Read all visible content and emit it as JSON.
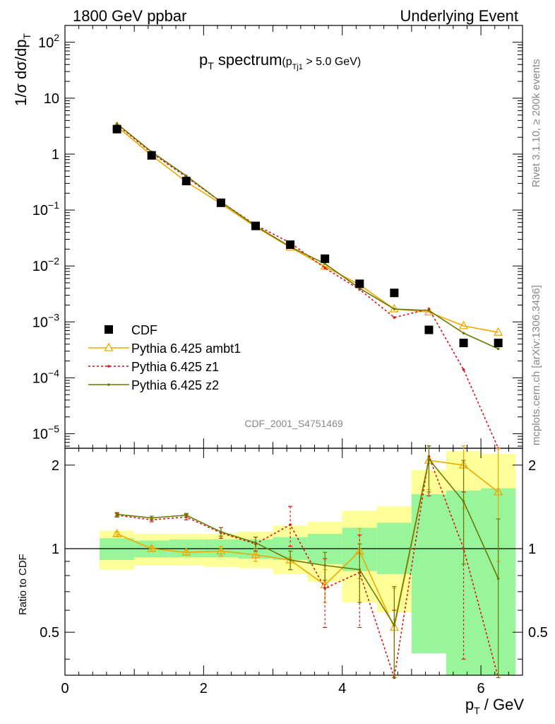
{
  "header": {
    "left": "1800 GeV ppbar",
    "right": "Underlying Event"
  },
  "title": {
    "main": "p",
    "main_sub": "T",
    "main_rest": " spectrum",
    "cut_open": "(p",
    "cut_sub": "Tj1",
    "cut_rest": " > 5.0 GeV)"
  },
  "ylabel_top": {
    "text": "1/σ dσ/dp",
    "sub": "T"
  },
  "ylabel_ratio": "Ratio to CDF",
  "xlabel": {
    "text": "p",
    "sub": "T",
    "rest": " / GeV"
  },
  "watermark": "CDF_2001_S4751469",
  "side_texts": {
    "rivet": "Rivet 3.1.10, ≥ 200k events",
    "site": "mcplots.cern.ch [arXiv:1306.3436]"
  },
  "colors": {
    "data": "#000000",
    "ambt1": "#f0a800",
    "z1": "#dd1111",
    "z2": "#6b7a00",
    "band_inner": "#99f599",
    "band_outer": "#ffff99"
  },
  "chart_data": {
    "type": "line",
    "x_range": [
      0,
      6.6
    ],
    "y_range_top": [
      5.5e-06,
      200
    ],
    "y_scale_top": "log",
    "y_range_ratio": [
      0.35,
      2.3
    ],
    "y_scale_ratio": "log",
    "x_ticks": [
      "0",
      "2",
      "4",
      "6"
    ],
    "y_ticks_top": [
      {
        "v": 100,
        "base": "10",
        "exp": "2"
      },
      {
        "v": 10,
        "base": "10",
        "exp": ""
      },
      {
        "v": 1,
        "base": "1",
        "exp": ""
      },
      {
        "v": 0.1,
        "base": "10",
        "exp": "−1"
      },
      {
        "v": 0.01,
        "base": "10",
        "exp": "−2"
      },
      {
        "v": 0.001,
        "base": "10",
        "exp": "−3"
      },
      {
        "v": 0.0001,
        "base": "10",
        "exp": "−4"
      },
      {
        "v": 1e-05,
        "base": "10",
        "exp": "−5"
      }
    ],
    "y_ticks_ratio": [
      {
        "v": 0.5,
        "label": "0.5"
      },
      {
        "v": 1,
        "label": "1"
      },
      {
        "v": 2,
        "label": "2"
      }
    ],
    "data": {
      "name": "CDF",
      "x": [
        0.75,
        1.25,
        1.75,
        2.25,
        2.75,
        3.25,
        3.75,
        4.25,
        4.75,
        5.25,
        5.75,
        6.25
      ],
      "y": [
        2.8,
        0.95,
        0.33,
        0.135,
        0.052,
        0.024,
        0.0135,
        0.0048,
        0.0033,
        0.00072,
        0.00042,
        0.00042
      ]
    },
    "bands": {
      "x_edges": [
        0.5,
        1.0,
        1.5,
        2.0,
        2.5,
        3.0,
        3.5,
        4.0,
        4.5,
        5.0,
        5.5,
        6.0,
        6.5
      ],
      "inner_lo": [
        0.91,
        0.93,
        0.93,
        0.93,
        0.92,
        0.91,
        0.88,
        0.83,
        0.81,
        0.42,
        0.33,
        0.35
      ],
      "inner_hi": [
        1.09,
        1.07,
        1.08,
        1.08,
        1.08,
        1.1,
        1.13,
        1.19,
        1.24,
        1.57,
        1.62,
        1.65
      ],
      "outer_lo": [
        0.84,
        0.87,
        0.87,
        0.86,
        0.85,
        0.81,
        0.76,
        0.64,
        0.59,
        0.55,
        0.36,
        0.37
      ],
      "outer_hi": [
        1.16,
        1.13,
        1.13,
        1.13,
        1.15,
        1.21,
        1.25,
        1.37,
        1.42,
        1.92,
        2.25,
        2.2
      ]
    },
    "series": [
      {
        "name": "Pythia 6.425 ambt1",
        "y": [
          3.15,
          0.95,
          0.32,
          0.13,
          0.05,
          0.0215,
          0.0098,
          0.0046,
          0.0017,
          0.0015,
          0.00085,
          0.00065
        ],
        "ratio": [
          1.13,
          1.0,
          0.97,
          0.98,
          0.95,
          0.91,
          0.74,
          0.98,
          0.52,
          2.08,
          2.0,
          1.6
        ],
        "ratio_err": [
          0.02,
          0.02,
          0.02,
          0.04,
          0.05,
          0.07,
          0.1,
          0.2,
          0.2,
          0.45,
          0.6,
          0.7
        ]
      },
      {
        "name": "Pythia 6.425 z1",
        "y": [
          3.4,
          1.05,
          0.39,
          0.14,
          0.054,
          0.026,
          0.0092,
          0.0038,
          0.0012,
          0.0017,
          0.00014,
          0.0
        ],
        "ratio": [
          1.32,
          1.27,
          1.3,
          1.14,
          1.04,
          1.22,
          0.72,
          0.82,
          0.3,
          2.15,
          1.0,
          0.0
        ],
        "ratio_err": [
          0.02,
          0.02,
          0.03,
          0.05,
          0.06,
          0.2,
          0.2,
          0.3,
          0.3,
          0.6,
          0.6,
          0.0
        ]
      },
      {
        "name": "Pythia 6.425 z2",
        "y": [
          3.5,
          1.1,
          0.41,
          0.14,
          0.052,
          0.022,
          0.011,
          0.004,
          0.0017,
          0.0016,
          0.00063,
          0.00033
        ],
        "ratio": [
          1.33,
          1.29,
          1.32,
          1.15,
          1.05,
          0.91,
          0.87,
          0.84,
          0.53,
          2.1,
          1.48,
          0.78
        ],
        "ratio_err": [
          0.02,
          0.02,
          0.02,
          0.04,
          0.05,
          0.07,
          0.1,
          0.2,
          0.2,
          0.5,
          0.6,
          0.5
        ]
      }
    ],
    "legend_placement": "lower-left"
  }
}
